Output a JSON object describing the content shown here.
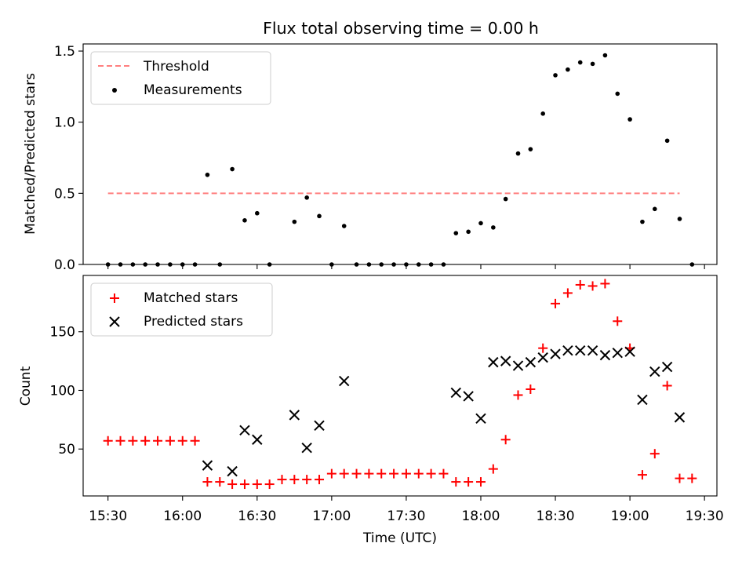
{
  "title": "Flux total observing time = 0.00 h",
  "chart_data": [
    {
      "type": "scatter",
      "ylabel": "Matched/Predicted stars",
      "ylim": [
        0,
        1.55
      ],
      "yticks": [
        0.0,
        0.5,
        1.0,
        1.5
      ],
      "ytick_labels": [
        "0.0",
        "0.5",
        "1.0",
        "1.5"
      ],
      "legend_position": "top-left",
      "threshold": {
        "name": "Threshold",
        "value": 0.5,
        "x_from": "15:30",
        "x_to": "19:20",
        "color": "#ff7f7f",
        "style": "dashed"
      },
      "series": [
        {
          "name": "Measurements",
          "color": "#000000",
          "marker": "dot",
          "points": [
            [
              "15:30",
              0
            ],
            [
              "15:35",
              0
            ],
            [
              "15:40",
              0
            ],
            [
              "15:45",
              0
            ],
            [
              "15:50",
              0
            ],
            [
              "15:55",
              0
            ],
            [
              "16:00",
              0
            ],
            [
              "16:05",
              0
            ],
            [
              "16:10",
              0.63
            ],
            [
              "16:15",
              0
            ],
            [
              "16:20",
              0.67
            ],
            [
              "16:25",
              0.31
            ],
            [
              "16:30",
              0.36
            ],
            [
              "16:35",
              0
            ],
            [
              "16:45",
              0.3
            ],
            [
              "16:50",
              0.47
            ],
            [
              "16:55",
              0.34
            ],
            [
              "17:00",
              0
            ],
            [
              "17:05",
              0.27
            ],
            [
              "17:10",
              0
            ],
            [
              "17:15",
              0
            ],
            [
              "17:20",
              0
            ],
            [
              "17:25",
              0
            ],
            [
              "17:30",
              0
            ],
            [
              "17:35",
              0
            ],
            [
              "17:40",
              0
            ],
            [
              "17:45",
              0
            ],
            [
              "17:50",
              0.22
            ],
            [
              "17:55",
              0.23
            ],
            [
              "18:00",
              0.29
            ],
            [
              "18:05",
              0.26
            ],
            [
              "18:10",
              0.46
            ],
            [
              "18:15",
              0.78
            ],
            [
              "18:20",
              0.81
            ],
            [
              "18:25",
              1.06
            ],
            [
              "18:30",
              1.33
            ],
            [
              "18:35",
              1.37
            ],
            [
              "18:40",
              1.42
            ],
            [
              "18:45",
              1.41
            ],
            [
              "18:50",
              1.47
            ],
            [
              "18:55",
              1.2
            ],
            [
              "19:00",
              1.02
            ],
            [
              "19:05",
              0.3
            ],
            [
              "19:10",
              0.39
            ],
            [
              "19:15",
              0.87
            ],
            [
              "19:20",
              0.32
            ],
            [
              "19:25",
              0
            ]
          ]
        }
      ]
    },
    {
      "type": "scatter",
      "xlabel": "Time (UTC)",
      "ylabel": "Count",
      "ylim": [
        10,
        198
      ],
      "yticks": [
        50,
        100,
        150
      ],
      "ytick_labels": [
        "50",
        "100",
        "150"
      ],
      "xlim": [
        "15:20",
        "19:35"
      ],
      "xticks": [
        "15:30",
        "16:00",
        "16:30",
        "17:00",
        "17:30",
        "18:00",
        "18:30",
        "19:00",
        "19:30"
      ],
      "legend_position": "top-left",
      "series": [
        {
          "name": "Matched stars",
          "color": "#ff0000",
          "marker": "plus",
          "points": [
            [
              "15:30",
              57
            ],
            [
              "15:35",
              57
            ],
            [
              "15:40",
              57
            ],
            [
              "15:45",
              57
            ],
            [
              "15:50",
              57
            ],
            [
              "15:55",
              57
            ],
            [
              "16:00",
              57
            ],
            [
              "16:05",
              57
            ],
            [
              "16:10",
              22
            ],
            [
              "16:15",
              22
            ],
            [
              "16:20",
              20
            ],
            [
              "16:25",
              20
            ],
            [
              "16:30",
              20
            ],
            [
              "16:35",
              20
            ],
            [
              "16:40",
              24
            ],
            [
              "16:45",
              24
            ],
            [
              "16:50",
              24
            ],
            [
              "16:55",
              24
            ],
            [
              "17:00",
              29
            ],
            [
              "17:05",
              29
            ],
            [
              "17:10",
              29
            ],
            [
              "17:15",
              29
            ],
            [
              "17:20",
              29
            ],
            [
              "17:25",
              29
            ],
            [
              "17:30",
              29
            ],
            [
              "17:35",
              29
            ],
            [
              "17:40",
              29
            ],
            [
              "17:45",
              29
            ],
            [
              "17:50",
              22
            ],
            [
              "17:55",
              22
            ],
            [
              "18:00",
              22
            ],
            [
              "18:05",
              33
            ],
            [
              "18:10",
              58
            ],
            [
              "18:15",
              96
            ],
            [
              "18:20",
              101
            ],
            [
              "18:25",
              136
            ],
            [
              "18:30",
              174
            ],
            [
              "18:35",
              183
            ],
            [
              "18:40",
              190
            ],
            [
              "18:45",
              189
            ],
            [
              "18:50",
              191
            ],
            [
              "18:55",
              159
            ],
            [
              "19:00",
              136
            ],
            [
              "19:05",
              28
            ],
            [
              "19:10",
              46
            ],
            [
              "19:15",
              104
            ],
            [
              "19:20",
              25
            ],
            [
              "19:25",
              25
            ]
          ]
        },
        {
          "name": "Predicted stars",
          "color": "#000000",
          "marker": "x",
          "points": [
            [
              "16:10",
              36
            ],
            [
              "16:20",
              31
            ],
            [
              "16:25",
              66
            ],
            [
              "16:30",
              58
            ],
            [
              "16:45",
              79
            ],
            [
              "16:50",
              51
            ],
            [
              "16:55",
              70
            ],
            [
              "17:05",
              108
            ],
            [
              "17:50",
              98
            ],
            [
              "17:55",
              95
            ],
            [
              "18:00",
              76
            ],
            [
              "18:05",
              124
            ],
            [
              "18:10",
              125
            ],
            [
              "18:15",
              121
            ],
            [
              "18:20",
              124
            ],
            [
              "18:25",
              128
            ],
            [
              "18:30",
              131
            ],
            [
              "18:35",
              134
            ],
            [
              "18:40",
              134
            ],
            [
              "18:45",
              134
            ],
            [
              "18:50",
              130
            ],
            [
              "18:55",
              132
            ],
            [
              "19:00",
              133
            ],
            [
              "19:05",
              92
            ],
            [
              "19:10",
              116
            ],
            [
              "19:15",
              120
            ],
            [
              "19:20",
              77
            ]
          ]
        }
      ]
    }
  ]
}
